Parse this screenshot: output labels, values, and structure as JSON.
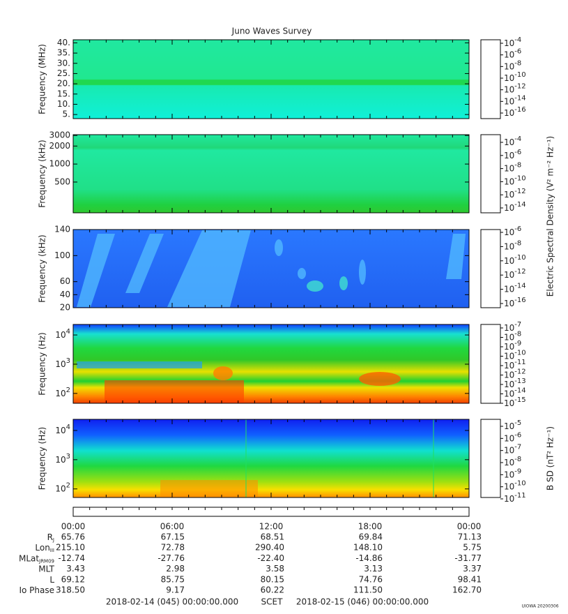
{
  "title": "Juno Waves Survey",
  "panels": [
    {
      "ylabel": "Frequency (MHz)",
      "scale": "linear",
      "ylim": [
        3,
        41.5
      ],
      "yticks": [
        {
          "value": 40,
          "label": "40."
        },
        {
          "value": 35,
          "label": "35."
        },
        {
          "value": 30,
          "label": "30."
        },
        {
          "value": 25,
          "label": "25."
        },
        {
          "value": 20,
          "label": "20."
        },
        {
          "value": 15,
          "label": "15."
        },
        {
          "value": 10,
          "label": "10."
        },
        {
          "value": 5,
          "label": "5."
        }
      ],
      "cbar_ticks": [
        {
          "base": "10",
          "exp": "-4"
        },
        {
          "base": "10",
          "exp": "-6"
        },
        {
          "base": "10",
          "exp": "-8"
        },
        {
          "base": "10",
          "exp": "-10"
        },
        {
          "base": "10",
          "exp": "-12"
        },
        {
          "base": "10",
          "exp": "-14"
        },
        {
          "base": "10",
          "exp": "-16"
        }
      ]
    },
    {
      "ylabel": "Frequency (kHz)",
      "scale": "log",
      "ylim": [
        153,
        3100
      ],
      "yticks": [
        3000,
        2000,
        1000,
        500
      ],
      "cbar_ticks": [
        {
          "base": "10",
          "exp": "-4"
        },
        {
          "base": "10",
          "exp": "-6"
        },
        {
          "base": "10",
          "exp": "-8"
        },
        {
          "base": "10",
          "exp": "-10"
        },
        {
          "base": "10",
          "exp": "-12"
        },
        {
          "base": "10",
          "exp": "-14"
        }
      ]
    },
    {
      "ylabel": "Frequency (kHz)",
      "scale": "linear",
      "ylim": [
        20,
        140
      ],
      "yticks": [
        140,
        100,
        60,
        40,
        20
      ],
      "cbar_ticks": [
        {
          "base": "10",
          "exp": "-6"
        },
        {
          "base": "10",
          "exp": "-8"
        },
        {
          "base": "10",
          "exp": "-10"
        },
        {
          "base": "10",
          "exp": "-12"
        },
        {
          "base": "10",
          "exp": "-14"
        },
        {
          "base": "10",
          "exp": "-16"
        }
      ]
    },
    {
      "ylabel": "Frequency (Hz)",
      "scale": "log",
      "ylim": [
        46,
        22900
      ],
      "yticks": [
        {
          "value": 10000,
          "base": "10",
          "exp": "4"
        },
        {
          "value": 1000,
          "base": "10",
          "exp": "3"
        },
        {
          "value": 100,
          "base": "10",
          "exp": "2"
        }
      ],
      "cbar_ticks": [
        {
          "base": "10",
          "exp": "-7"
        },
        {
          "base": "10",
          "exp": "-8"
        },
        {
          "base": "10",
          "exp": "-9"
        },
        {
          "base": "10",
          "exp": "-10"
        },
        {
          "base": "10",
          "exp": "-11"
        },
        {
          "base": "10",
          "exp": "-12"
        },
        {
          "base": "10",
          "exp": "-13"
        },
        {
          "base": "10",
          "exp": "-14"
        },
        {
          "base": "10",
          "exp": "-15"
        }
      ]
    },
    {
      "ylabel": "Frequency (Hz)",
      "scale": "log",
      "ylim": [
        51,
        24000
      ],
      "yticks": [
        {
          "value": 10000,
          "base": "10",
          "exp": "4"
        },
        {
          "value": 1000,
          "base": "10",
          "exp": "3"
        },
        {
          "value": 100,
          "base": "10",
          "exp": "2"
        }
      ],
      "cbar_ticks": [
        {
          "base": "10",
          "exp": "-5"
        },
        {
          "base": "10",
          "exp": "-6"
        },
        {
          "base": "10",
          "exp": "-7"
        },
        {
          "base": "10",
          "exp": "-8"
        },
        {
          "base": "10",
          "exp": "-9"
        },
        {
          "base": "10",
          "exp": "-10"
        },
        {
          "base": "10",
          "exp": "-11"
        }
      ]
    }
  ],
  "colorbar_label_e": "Electric Spectral Density (V² m⁻² Hz⁻¹)",
  "colorbar_label_b": "B SD (nT² Hz⁻¹)",
  "time_labels": [
    "00:00",
    "06:00",
    "12:00",
    "18:00",
    "00:00"
  ],
  "ephemeris": [
    {
      "label": "R",
      "sub": "J",
      "values": [
        "65.76",
        "67.15",
        "68.51",
        "69.84",
        "71.13"
      ]
    },
    {
      "label": "Lon",
      "sub": "III",
      "values": [
        "215.10",
        "72.78",
        "290.40",
        "148.10",
        "5.75"
      ]
    },
    {
      "label": "MLat",
      "sub": "JRM09",
      "values": [
        "-12.74",
        "-27.76",
        "-22.40",
        "-14.86",
        "-31.77"
      ]
    },
    {
      "label": "MLT",
      "sub": "",
      "values": [
        "3.43",
        "2.98",
        "3.58",
        "3.13",
        "3.37"
      ]
    },
    {
      "label": "L",
      "sub": "",
      "values": [
        "69.12",
        "85.75",
        "80.15",
        "74.76",
        "98.41"
      ]
    },
    {
      "label": "Io Phase",
      "sub": "",
      "values": [
        "318.50",
        "9.17",
        "60.22",
        "111.50",
        "162.70"
      ]
    }
  ],
  "footer": {
    "start": "2018-02-14 (045) 00:00:00.000",
    "middle": "SCET",
    "end": "2018-02-15 (046) 00:00:00.000"
  },
  "stamp": "UIOWA 20200306"
}
